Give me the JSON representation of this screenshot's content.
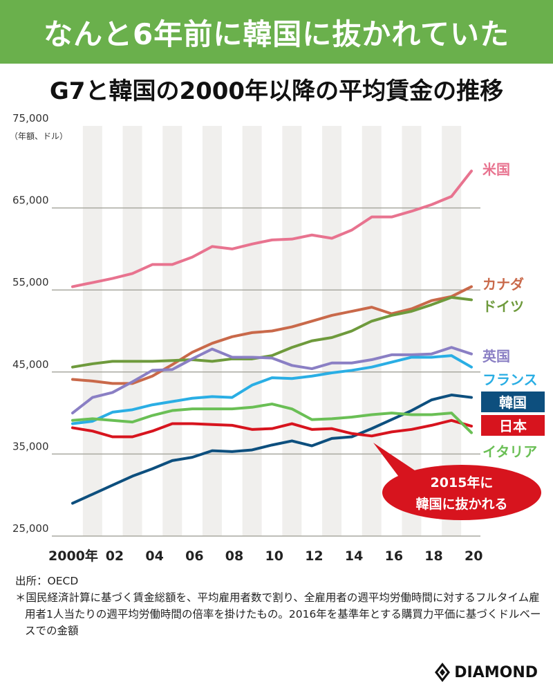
{
  "banner": "なんと6年前に韓国に抜かれていた",
  "chart_data": {
    "type": "line",
    "title": "G7と韓国の2000年以降の平均賃金の推移",
    "ylabel": "（年額、ドル）",
    "ylim": [
      25000,
      75000
    ],
    "yticks": [
      25000,
      35000,
      45000,
      55000,
      65000,
      75000
    ],
    "ytick_labels": [
      "25,000",
      "35,000",
      "45,000",
      "55,000",
      "65,000",
      "75,000"
    ],
    "x": [
      2000,
      2001,
      2002,
      2003,
      2004,
      2005,
      2006,
      2007,
      2008,
      2009,
      2010,
      2011,
      2012,
      2013,
      2014,
      2015,
      2016,
      2017,
      2018,
      2019,
      2020
    ],
    "xtick_labels": [
      "2000年",
      "02",
      "04",
      "06",
      "08",
      "10",
      "12",
      "14",
      "16",
      "18",
      "20"
    ],
    "series": [
      {
        "name": "米国",
        "color": "#e8738f",
        "values": [
          55400,
          55900,
          56400,
          57000,
          58100,
          58100,
          59000,
          60300,
          60000,
          60600,
          61100,
          61200,
          61700,
          61300,
          62300,
          63900,
          63900,
          64600,
          65400,
          66400,
          69500
        ]
      },
      {
        "name": "カナダ",
        "color": "#c9694a",
        "values": [
          44100,
          43900,
          43600,
          43600,
          44500,
          45900,
          47400,
          48500,
          49300,
          49800,
          50000,
          50500,
          51200,
          51900,
          52400,
          52900,
          52100,
          52700,
          53700,
          54200,
          55400
        ]
      },
      {
        "name": "ドイツ",
        "color": "#6e9a3c",
        "values": [
          45600,
          46000,
          46300,
          46300,
          46300,
          46400,
          46500,
          46300,
          46600,
          46600,
          47000,
          48000,
          48800,
          49200,
          50000,
          51200,
          51900,
          52400,
          53200,
          54100,
          53800
        ]
      },
      {
        "name": "英国",
        "color": "#8a7fc4",
        "values": [
          40000,
          41900,
          42500,
          43800,
          45200,
          45300,
          46600,
          47800,
          46800,
          46800,
          46700,
          45800,
          45400,
          46100,
          46100,
          46500,
          47100,
          47100,
          47200,
          48000,
          47200
        ]
      },
      {
        "name": "フランス",
        "color": "#2aaee4",
        "values": [
          38700,
          39000,
          40100,
          40400,
          41000,
          41400,
          41800,
          42000,
          41900,
          43400,
          44300,
          44200,
          44500,
          44900,
          45200,
          45600,
          46200,
          46800,
          46800,
          47000,
          45600
        ]
      },
      {
        "name": "韓国",
        "color": "#0d4f7e",
        "values": [
          29000,
          30100,
          31200,
          32300,
          33200,
          34200,
          34600,
          35400,
          35300,
          35500,
          36100,
          36600,
          36000,
          36900,
          37100,
          38100,
          39200,
          40300,
          41600,
          42200,
          41900
        ]
      },
      {
        "name": "日本",
        "color": "#d7141e",
        "values": [
          38200,
          37800,
          37100,
          37100,
          37800,
          38700,
          38700,
          38600,
          38500,
          38000,
          38100,
          38700,
          38000,
          38100,
          37500,
          37200,
          37700,
          38000,
          38500,
          39100,
          38400
        ]
      },
      {
        "name": "イタリア",
        "color": "#6abf55",
        "values": [
          39100,
          39300,
          39100,
          38900,
          39700,
          40300,
          40500,
          40500,
          40500,
          40700,
          41100,
          40500,
          39200,
          39300,
          39500,
          39800,
          40000,
          39800,
          39800,
          40000,
          37600
        ]
      }
    ],
    "annotation": {
      "line1": "2015年に",
      "line2": "韓国に抜かれる"
    }
  },
  "notes": {
    "source": "出所：OECD",
    "footnote": "＊国民経済計算に基づく賃金総額を、平均雇用者数で割り、全雇用者の週平均労働時間に対するフルタイム雇用者1人当たりの週平均労働時間の倍率を掛けたもの。2016年を基準年とする購買力平価に基づくドルベースでの金額"
  },
  "logo": "DIAMOND"
}
